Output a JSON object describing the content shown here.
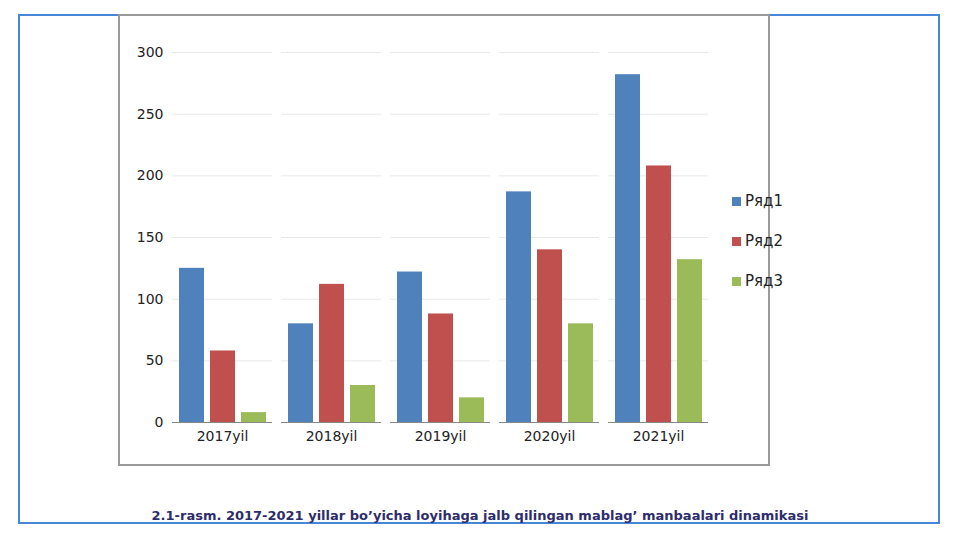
{
  "chart_data": {
    "type": "bar",
    "caption": "2.1-rasm. 2017-2021 yillar bo’yicha loyihaga jalb qilingan mablag’ manbaalari dinamikasi",
    "categories": [
      "2017yil",
      "2018yil",
      "2019yil",
      "2020yil",
      "2021yil"
    ],
    "series": [
      {
        "name": "Ряд1",
        "color": "#4f81bd",
        "values": [
          125,
          80,
          122,
          187,
          282
        ]
      },
      {
        "name": "Ряд2",
        "color": "#c0504d",
        "values": [
          58,
          112,
          88,
          140,
          208
        ]
      },
      {
        "name": "Ряд3",
        "color": "#9bbb59",
        "values": [
          8,
          30,
          20,
          80,
          132
        ]
      }
    ],
    "ylim": [
      0,
      300
    ],
    "yticks": [
      0,
      50,
      100,
      150,
      200,
      250,
      300
    ],
    "grid": true,
    "legend": "right"
  }
}
